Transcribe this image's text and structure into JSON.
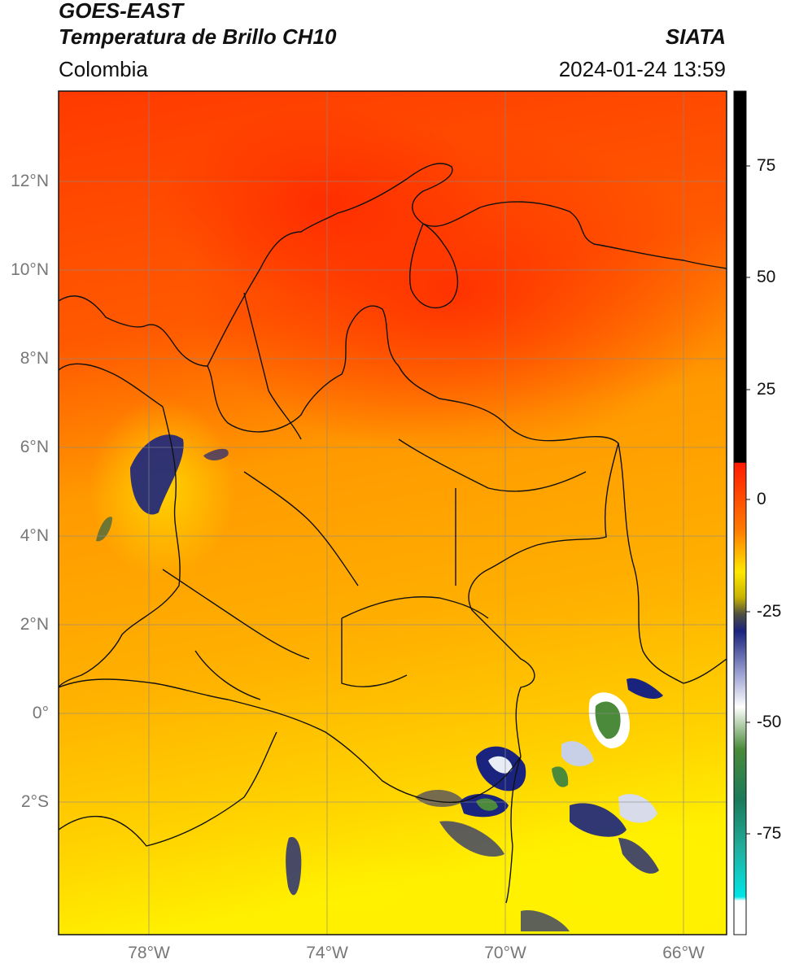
{
  "header": {
    "satellite": "GOES-EAST",
    "product": "Temperatura de Brillo CH10",
    "brand": "SIATA",
    "region": "Colombia",
    "datetime": "2024-01-24 13:59"
  },
  "map": {
    "lat_labels": [
      {
        "label": "12°N",
        "value": 12
      },
      {
        "label": "10°N",
        "value": 10
      },
      {
        "label": "8°N",
        "value": 8
      },
      {
        "label": "6°N",
        "value": 6
      },
      {
        "label": "4°N",
        "value": 4
      },
      {
        "label": "2°N",
        "value": 2
      },
      {
        "label": "0°",
        "value": 0
      },
      {
        "label": "2°S",
        "value": -2
      }
    ],
    "lon_labels": [
      {
        "label": "78°W",
        "value": -78
      },
      {
        "label": "74°W",
        "value": -74
      },
      {
        "label": "70°W",
        "value": -70
      },
      {
        "label": "66°W",
        "value": -66
      }
    ],
    "extent": {
      "lon_min": -80,
      "lon_max": -65,
      "lat_min": -5,
      "lat_max": 14
    }
  },
  "colorbar": {
    "ticks": [
      "75",
      "50",
      "25",
      "0",
      "-25",
      "-50",
      "-75"
    ],
    "tick_values": [
      75,
      50,
      25,
      0,
      -25,
      -50,
      -75
    ],
    "range": [
      -95,
      90
    ],
    "colors": {
      "max": "#000000",
      "warm": "#ff1a00",
      "mid": "#ffe800",
      "cold": "#1a237e",
      "white": "#ffffff",
      "green": "#2e7d32",
      "cyan": "#00e5e5"
    }
  }
}
